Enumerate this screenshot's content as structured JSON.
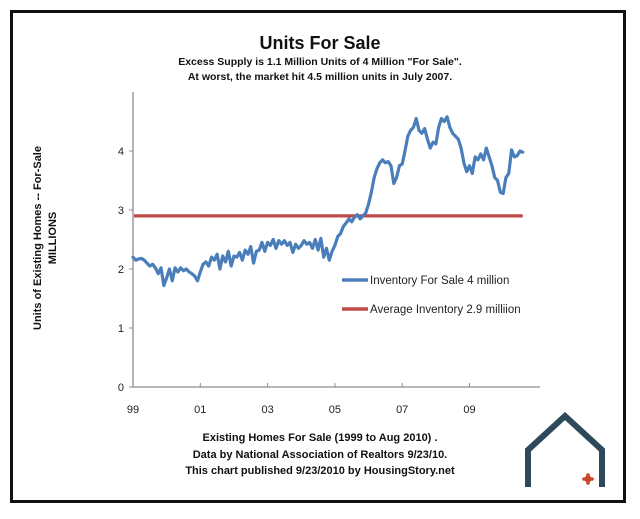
{
  "chart_data": {
    "type": "line",
    "title": "Units For Sale",
    "subtitle": [
      "Excess Supply is 1.1 Million Units of 4 Million \"For Sale\".",
      "At worst, the market hit 4.5 million units in July 2007."
    ],
    "ylabel": [
      "Units of Existing Homes -- For-Sale",
      "MILLIONS"
    ],
    "xlabel": "",
    "ylim": [
      0,
      5
    ],
    "yticks": [
      0,
      1,
      2,
      3,
      4
    ],
    "ytick_labels": [
      "0",
      "1",
      "2",
      "3",
      "4"
    ],
    "x_start": "1999-01",
    "x_end": "2010-08",
    "xlim_years": [
      1999,
      2010.83
    ],
    "xticks_years": [
      1999,
      2001,
      2003,
      2005,
      2007,
      2009
    ],
    "xtick_labels": [
      "99",
      "01",
      "03",
      "05",
      "07",
      "09"
    ],
    "grid": false,
    "legend_position": "center-right",
    "series": [
      {
        "name": "Inventory For Sale 4 million",
        "color": "#4a7ebb",
        "frequency": "monthly",
        "start": "1999-01",
        "values": [
          2.2,
          2.15,
          2.17,
          2.18,
          2.15,
          2.1,
          2.05,
          2.08,
          2.02,
          1.92,
          2.02,
          1.72,
          1.85,
          2.0,
          1.8,
          2.02,
          1.95,
          2.02,
          1.97,
          2.0,
          1.95,
          1.92,
          1.88,
          1.8,
          1.95,
          2.08,
          2.12,
          2.05,
          2.2,
          2.15,
          2.25,
          2.0,
          2.22,
          2.12,
          2.3,
          2.05,
          2.22,
          2.2,
          2.28,
          2.15,
          2.32,
          2.25,
          2.38,
          2.1,
          2.3,
          2.32,
          2.45,
          2.3,
          2.45,
          2.4,
          2.5,
          2.35,
          2.48,
          2.42,
          2.48,
          2.4,
          2.45,
          2.28,
          2.42,
          2.35,
          2.4,
          2.48,
          2.42,
          2.45,
          2.35,
          2.5,
          2.32,
          2.52,
          2.2,
          2.35,
          2.15,
          2.3,
          2.4,
          2.55,
          2.6,
          2.72,
          2.78,
          2.85,
          2.8,
          2.88,
          2.92,
          2.85,
          2.9,
          2.95,
          3.1,
          3.3,
          3.55,
          3.7,
          3.8,
          3.85,
          3.8,
          3.82,
          3.75,
          3.45,
          3.55,
          3.75,
          3.78,
          4.0,
          4.25,
          4.35,
          4.4,
          4.55,
          4.35,
          4.3,
          4.38,
          4.2,
          4.05,
          4.15,
          4.12,
          4.4,
          4.55,
          4.5,
          4.58,
          4.4,
          4.3,
          4.25,
          4.2,
          4.05,
          3.8,
          3.65,
          3.75,
          3.62,
          3.9,
          3.85,
          3.95,
          3.85,
          4.05,
          3.9,
          3.75,
          3.55,
          3.5,
          3.3,
          3.28,
          3.55,
          3.62,
          4.02,
          3.9,
          3.92,
          4.0,
          3.98
        ]
      },
      {
        "name": "Average Inventory 2.9 milliion",
        "color": "#be4b48",
        "frequency": "constant",
        "value": 2.9
      }
    ]
  },
  "footer": {
    "line1": "Existing Homes For Sale (1999 to Aug 2010) .",
    "line2": "Data by National Association of Realtors 9/23/10.",
    "line3": "This chart published 9/23/2010 by HousingStory.net"
  },
  "colors": {
    "inventory_line": "#4a7ebb",
    "average_line": "#be4b48",
    "axis": "#8c8c8c",
    "logo_house": "#2e4a5a",
    "logo_accent": "#c8452a",
    "frame": "#111111"
  },
  "logo": {
    "icon": "house-logo-icon"
  }
}
